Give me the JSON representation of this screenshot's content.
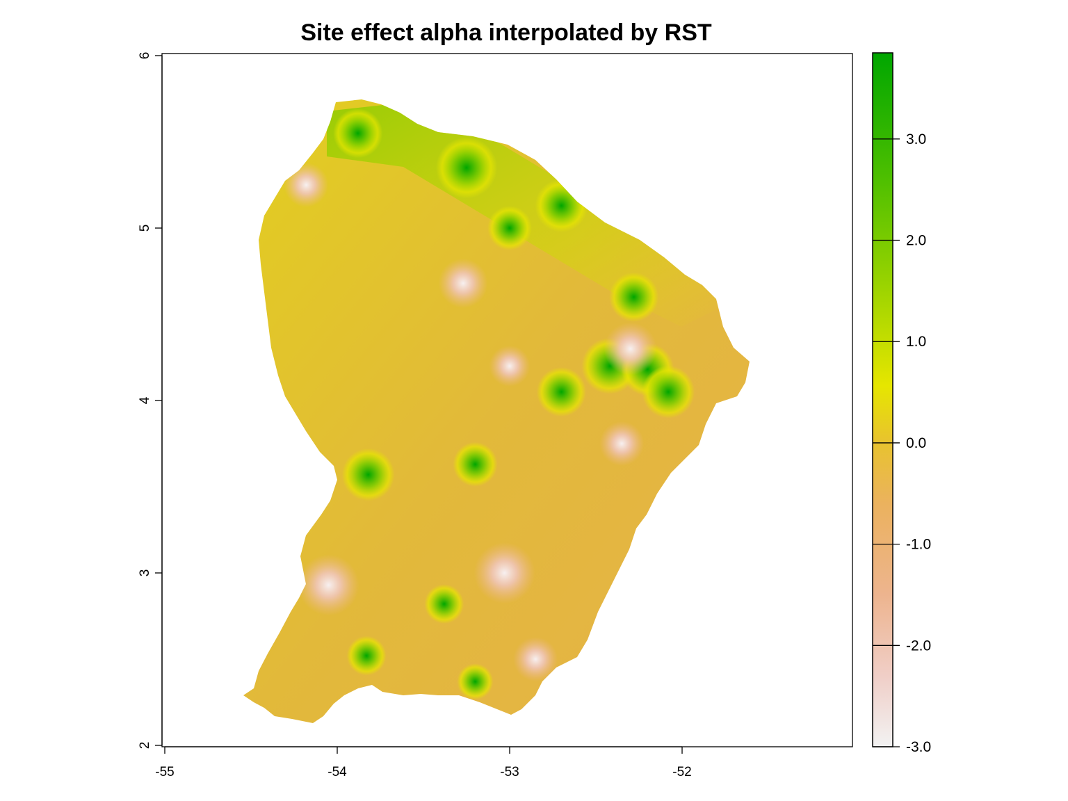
{
  "title": "Site effect alpha interpolated by RST",
  "map": {
    "x_ticks": [
      "-55",
      "-54",
      "-53",
      "-52"
    ],
    "y_ticks": [
      "2",
      "3",
      "4",
      "5",
      "6"
    ],
    "x_range": [
      -55,
      -51
    ],
    "y_range": [
      2,
      6
    ],
    "region_fill": "#e0bf2a",
    "hotspots": [
      {
        "lon": -53.82,
        "lat": 3.57,
        "value": 2.0,
        "label": "high"
      },
      {
        "lon": -53.88,
        "lat": 5.55,
        "value": 1.8,
        "label": "high"
      },
      {
        "lon": -53.25,
        "lat": 5.35,
        "value": 2.5,
        "label": "high"
      },
      {
        "lon": -52.7,
        "lat": 5.13,
        "value": 2.0,
        "label": "high"
      },
      {
        "lon": -52.28,
        "lat": 4.6,
        "value": 1.8,
        "label": "high"
      },
      {
        "lon": -52.7,
        "lat": 4.05,
        "value": 1.8,
        "label": "high"
      },
      {
        "lon": -52.42,
        "lat": 4.2,
        "value": 2.2,
        "label": "high"
      },
      {
        "lon": -52.2,
        "lat": 4.18,
        "value": 2.0,
        "label": "high"
      },
      {
        "lon": -52.08,
        "lat": 4.05,
        "value": 2.0,
        "label": "high"
      },
      {
        "lon": -53.2,
        "lat": 3.63,
        "value": 1.5,
        "label": "high"
      },
      {
        "lon": -53.38,
        "lat": 2.82,
        "value": 1.2,
        "label": "high"
      },
      {
        "lon": -53.83,
        "lat": 2.52,
        "value": 1.2,
        "label": "high"
      },
      {
        "lon": -53.2,
        "lat": 2.37,
        "value": 1.0,
        "label": "high"
      },
      {
        "lon": -53.0,
        "lat": 5.0,
        "value": 1.5,
        "label": "high"
      },
      {
        "lon": -54.05,
        "lat": 2.93,
        "value": -2.5,
        "label": "low"
      },
      {
        "lon": -53.03,
        "lat": 3.0,
        "value": -2.5,
        "label": "low"
      },
      {
        "lon": -53.27,
        "lat": 4.68,
        "value": -1.8,
        "label": "low"
      },
      {
        "lon": -54.18,
        "lat": 5.25,
        "value": -1.5,
        "label": "low"
      },
      {
        "lon": -52.3,
        "lat": 4.3,
        "value": -2.0,
        "label": "low"
      },
      {
        "lon": -52.85,
        "lat": 2.5,
        "value": -1.5,
        "label": "low"
      },
      {
        "lon": -52.35,
        "lat": 3.75,
        "value": -1.5,
        "label": "low"
      },
      {
        "lon": -53.0,
        "lat": 4.2,
        "value": -1.3,
        "label": "low"
      }
    ]
  },
  "legend": {
    "labels": [
      "3.0",
      "2.0",
      "1.0",
      "0.0",
      "-1.0",
      "-2.0",
      "-3.0"
    ],
    "values": [
      3,
      2,
      1,
      0,
      -1,
      -2,
      -3
    ],
    "range": [
      -3,
      3.85
    ],
    "colors": [
      "#00a600",
      "#63c600",
      "#e6e600",
      "#e8c32e",
      "#ebb25e",
      "#edb48e",
      "#f0c9c0",
      "#f2f2f2"
    ]
  }
}
